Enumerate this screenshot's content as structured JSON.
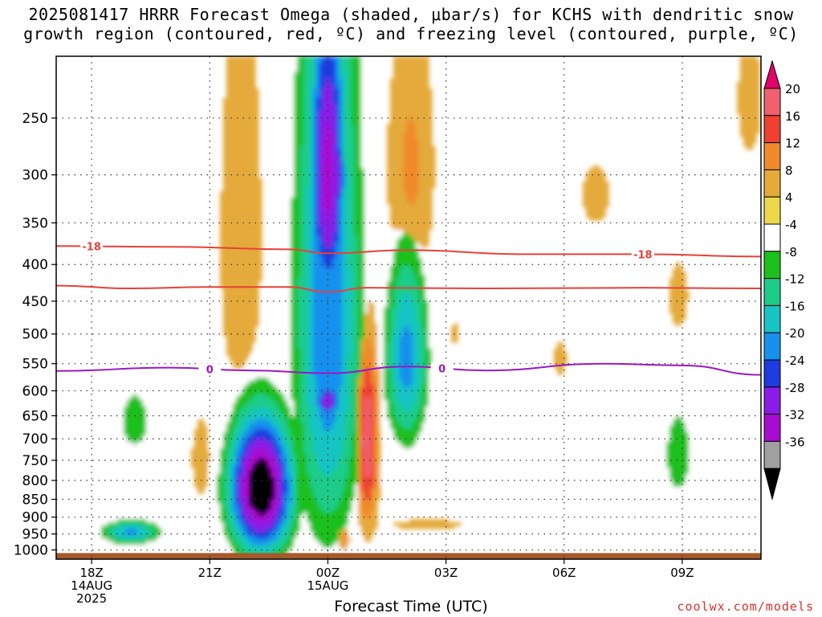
{
  "title_line1": "2025081417 HRRR Forecast Omega (shaded, μbar/s) for KCHS with dendritic snow",
  "title_line2": "growth region (contoured, red, ºC) and freezing level (contoured, purple, ºC)",
  "credit": "coolwx.com/models",
  "chart_data": {
    "type": "heatmap",
    "xlabel": "Forecast Time (UTC)",
    "x_ticks": [
      {
        "label": "18Z",
        "sub1": "14AUG",
        "sub2": "2025",
        "hour": 18
      },
      {
        "label": "21Z",
        "sub1": "",
        "sub2": "",
        "hour": 21
      },
      {
        "label": "00Z",
        "sub1": "15AUG",
        "sub2": "",
        "hour": 24
      },
      {
        "label": "03Z",
        "sub1": "",
        "sub2": "",
        "hour": 27
      },
      {
        "label": "06Z",
        "sub1": "",
        "sub2": "",
        "hour": 30
      },
      {
        "label": "09Z",
        "sub1": "",
        "sub2": "",
        "hour": 33
      }
    ],
    "xlim": [
      17.1,
      35.0
    ],
    "y_scale": "log-pressure",
    "ylim": [
      1030,
      205
    ],
    "y_ticks": [
      250,
      300,
      350,
      400,
      450,
      500,
      550,
      600,
      650,
      700,
      750,
      800,
      850,
      900,
      950,
      1000
    ],
    "colorbar": {
      "labels": [
        "20",
        "16",
        "12",
        "8",
        "4",
        "-4",
        "-8",
        "-12",
        "-16",
        "-20",
        "-24",
        "-28",
        "-32",
        "-36"
      ],
      "colors": [
        "#f0606e",
        "#f04030",
        "#f08a2a",
        "#e4aa3a",
        "#ecd84a",
        "#ffffff",
        "#1cc01c",
        "#1ccc88",
        "#18c4c4",
        "#1890ee",
        "#1c3ce0",
        "#8a1ce8",
        "#a80cd0",
        "#a0a0a0"
      ],
      "top_color": "#e0006a",
      "bottom_color": "#000000"
    },
    "dendritic_contours": [
      {
        "value": -18,
        "label": "-18",
        "line_color": "#e84038",
        "points": [
          [
            17.1,
            377
          ],
          [
            20,
            378
          ],
          [
            23,
            381
          ],
          [
            24,
            386
          ],
          [
            26,
            382
          ],
          [
            29,
            387
          ],
          [
            32,
            387
          ],
          [
            35,
            390
          ]
        ],
        "label_hours": [
          18.0,
          32.0
        ]
      },
      {
        "value": -12,
        "label": "",
        "line_color": "#e84038",
        "points": [
          [
            17.1,
            428
          ],
          [
            19,
            432
          ],
          [
            21,
            430
          ],
          [
            23,
            430
          ],
          [
            24,
            437
          ],
          [
            25,
            431
          ],
          [
            28,
            432
          ],
          [
            32,
            431
          ],
          [
            35,
            432
          ]
        ],
        "label_hours": []
      }
    ],
    "freezing_level": {
      "value": 0,
      "label": "0",
      "line_color": "#9a18c0",
      "points": [
        [
          17.1,
          563
        ],
        [
          20,
          557
        ],
        [
          22,
          562
        ],
        [
          24,
          567
        ],
        [
          26,
          555
        ],
        [
          28,
          562
        ],
        [
          31,
          550
        ],
        [
          33,
          553
        ],
        [
          35,
          570
        ]
      ],
      "label_hours": [
        21.0,
        26.9
      ]
    },
    "omega_features": [
      {
        "hour": 22.3,
        "p": 820,
        "dh": 0.85,
        "dp": 190,
        "peak": -42
      },
      {
        "hour": 24.0,
        "p": 300,
        "dh": 0.55,
        "dp": 180,
        "peak": -34
      },
      {
        "hour": 24.0,
        "p": 470,
        "dh": 0.9,
        "dp": 500,
        "peak": -24
      },
      {
        "hour": 24.0,
        "p": 620,
        "dh": 0.35,
        "dp": 40,
        "peak": -32
      },
      {
        "hour": 23.9,
        "p": 770,
        "dh": 1.8,
        "dp": 320,
        "peak": -8
      },
      {
        "hour": 26.0,
        "p": 540,
        "dh": 0.6,
        "dp": 180,
        "peak": -22
      },
      {
        "hour": 26.1,
        "p": 560,
        "dh": 1.3,
        "dp": 390,
        "peak": -6
      },
      {
        "hour": 19.1,
        "p": 660,
        "dh": 0.9,
        "dp": 150,
        "peak": -9
      },
      {
        "hour": 19.0,
        "p": 945,
        "dh": 0.8,
        "dp": 40,
        "peak": -21
      },
      {
        "hour": 32.9,
        "p": 735,
        "dh": 0.5,
        "dp": 150,
        "peak": -11
      },
      {
        "hour": 31.0,
        "p": 760,
        "dh": 0.5,
        "dp": 130,
        "peak": -5
      },
      {
        "hour": 27.3,
        "p": 640,
        "dh": 0.75,
        "dp": 140,
        "peak": -5
      },
      {
        "hour": 25.0,
        "p": 700,
        "dh": 0.3,
        "dp": 230,
        "peak": 21
      },
      {
        "hour": 25.1,
        "p": 620,
        "dh": 0.5,
        "dp": 330,
        "peak": 5
      },
      {
        "hour": 24.4,
        "p": 960,
        "dh": 0.2,
        "dp": 50,
        "peak": 12
      },
      {
        "hour": 26.3,
        "p": 920,
        "dh": 2.7,
        "dp": 55,
        "peak": 5
      },
      {
        "hour": 20.8,
        "p": 750,
        "dh": 0.4,
        "dp": 160,
        "peak": 6
      },
      {
        "hour": 21.8,
        "p": 380,
        "dh": 0.7,
        "dp": 330,
        "peak": 7
      },
      {
        "hour": 26.1,
        "p": 300,
        "dh": 0.7,
        "dp": 150,
        "peak": 10
      },
      {
        "hour": 27.2,
        "p": 500,
        "dh": 0.45,
        "dp": 90,
        "peak": 5
      },
      {
        "hour": 29.9,
        "p": 540,
        "dh": 0.3,
        "dp": 60,
        "peak": 5
      },
      {
        "hour": 32.9,
        "p": 445,
        "dh": 0.5,
        "dp": 100,
        "peak": 5
      },
      {
        "hour": 30.8,
        "p": 320,
        "dh": 0.7,
        "dp": 60,
        "peak": 5
      },
      {
        "hour": 34.7,
        "p": 235,
        "dh": 0.6,
        "dp": 90,
        "peak": 5
      }
    ],
    "ground": {
      "color": "#a65a2a",
      "p_top": 1010
    }
  }
}
